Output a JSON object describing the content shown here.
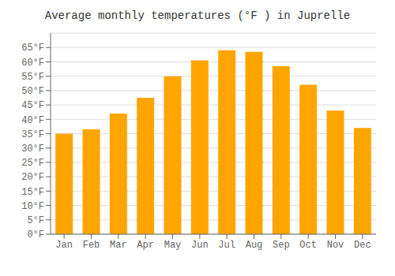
{
  "chart_data": {
    "type": "bar",
    "title": "Average monthly temperatures (°F ) in Juprelle",
    "categories": [
      "Jan",
      "Feb",
      "Mar",
      "Apr",
      "May",
      "Jun",
      "Jul",
      "Aug",
      "Sep",
      "Oct",
      "Nov",
      "Dec"
    ],
    "values": [
      35,
      36.5,
      42,
      47.5,
      55,
      60.5,
      64,
      63.5,
      58.5,
      52,
      43,
      37
    ],
    "color": "#FFA500",
    "ylim": [
      0,
      70
    ],
    "yticks": [
      {
        "value": 0,
        "label": "0°F"
      },
      {
        "value": 5,
        "label": "5°F"
      },
      {
        "value": 10,
        "label": "10°F"
      },
      {
        "value": 15,
        "label": "15°F"
      },
      {
        "value": 20,
        "label": "20°F"
      },
      {
        "value": 25,
        "label": "25°F"
      },
      {
        "value": 30,
        "label": "30°F"
      },
      {
        "value": 35,
        "label": "35°F"
      },
      {
        "value": 40,
        "label": "40°F"
      },
      {
        "value": 45,
        "label": "45°F"
      },
      {
        "value": 50,
        "label": "50°F"
      },
      {
        "value": 55,
        "label": "55°F"
      },
      {
        "value": 60,
        "label": "60°F"
      },
      {
        "value": 65,
        "label": "65°F"
      }
    ],
    "grid": true
  }
}
